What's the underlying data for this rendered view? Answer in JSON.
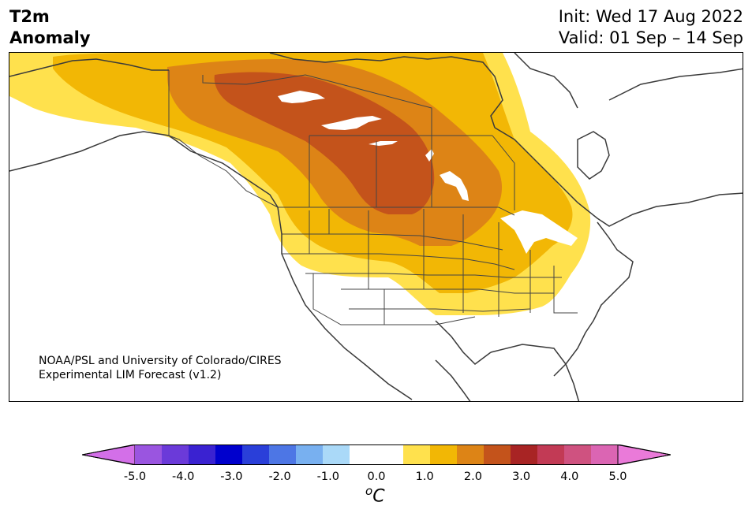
{
  "title": {
    "left_line1": "T2m",
    "left_line2": "Anomaly",
    "init": "Init: Wed 17 Aug 2022",
    "valid": "Valid: 01 Sep – 14 Sep"
  },
  "credit": {
    "line1": "NOAA/PSL and University of Colorado/CIRES",
    "line2": "Experimental LIM Forecast (v1.2)"
  },
  "colorbar": {
    "unit_base": "C",
    "unit_super": "o",
    "colors": [
      "#d36fe8",
      "#9a55e0",
      "#6b3ad9",
      "#3a22d1",
      "#0000cd",
      "#2a3fd9",
      "#4d76e5",
      "#78b0f0",
      "#aad9f8",
      "#ffffff",
      "#ffffff",
      "#ffe14d",
      "#f2b705",
      "#dd8416",
      "#c4531b",
      "#a82424",
      "#c23a55",
      "#cf5280",
      "#db65b3",
      "#ea7ad9"
    ],
    "ticks": [
      "-5.0",
      "-4.0",
      "-3.0",
      "-2.0",
      "-1.0",
      "0.0",
      "1.0",
      "2.0",
      "3.0",
      "4.0",
      "5.0"
    ]
  },
  "legend_anomaly_levels": [
    "0.5 to 1.0",
    "1.0 to 1.5",
    "1.5 to 2.0",
    "2.0 to 2.5"
  ]
}
